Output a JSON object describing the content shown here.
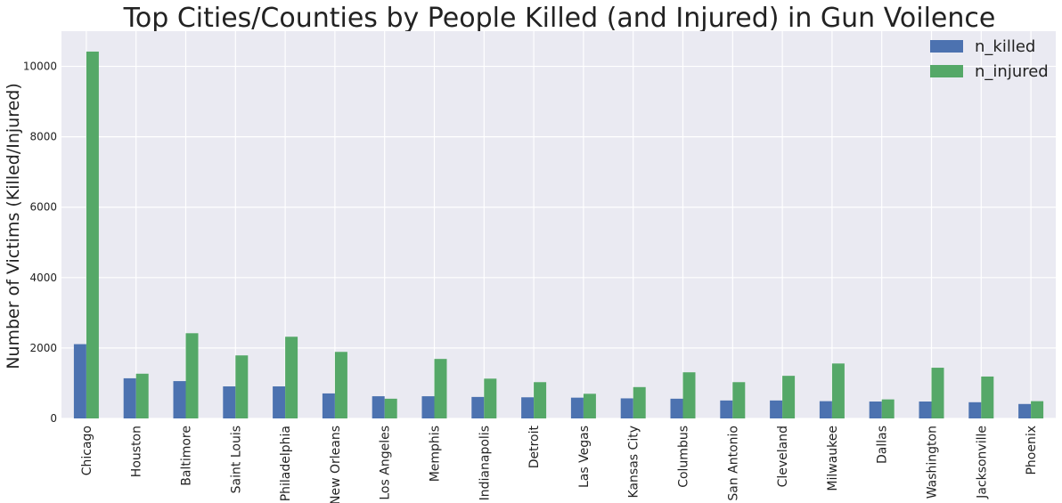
{
  "chart_data": {
    "type": "bar",
    "title": "Top Cities/Counties by People Killed (and Injured) in Gun Voilence",
    "xlabel": "",
    "ylabel": "Number of Victims (Killed/Injured)",
    "ylim": [
      0,
      11000
    ],
    "yticks": [
      0,
      2000,
      4000,
      6000,
      8000,
      10000
    ],
    "grid": true,
    "legend_position": "top-right",
    "categories": [
      "Chicago",
      "Houston",
      "Baltimore",
      "Saint Louis",
      "Philadelphia",
      "New Orleans",
      "Los Angeles",
      "Memphis",
      "Indianapolis",
      "Detroit",
      "Las Vegas",
      "Kansas City",
      "Columbus",
      "San Antonio",
      "Cleveland",
      "Milwaukee",
      "Dallas",
      "Washington",
      "Jacksonville",
      "Phoenix"
    ],
    "series": [
      {
        "name": "n_killed",
        "color": "#4c72b0",
        "values": [
          2110,
          1140,
          1060,
          910,
          910,
          710,
          630,
          630,
          610,
          600,
          590,
          570,
          560,
          510,
          510,
          490,
          480,
          480,
          460,
          410
        ]
      },
      {
        "name": "n_injured",
        "color": "#55a868",
        "values": [
          10420,
          1270,
          2420,
          1790,
          2320,
          1890,
          560,
          1690,
          1130,
          1030,
          700,
          890,
          1310,
          1030,
          1210,
          1560,
          540,
          1440,
          1190,
          490
        ]
      }
    ],
    "plot_background": "#eaeaf2",
    "grid_color": "#ffffff"
  }
}
